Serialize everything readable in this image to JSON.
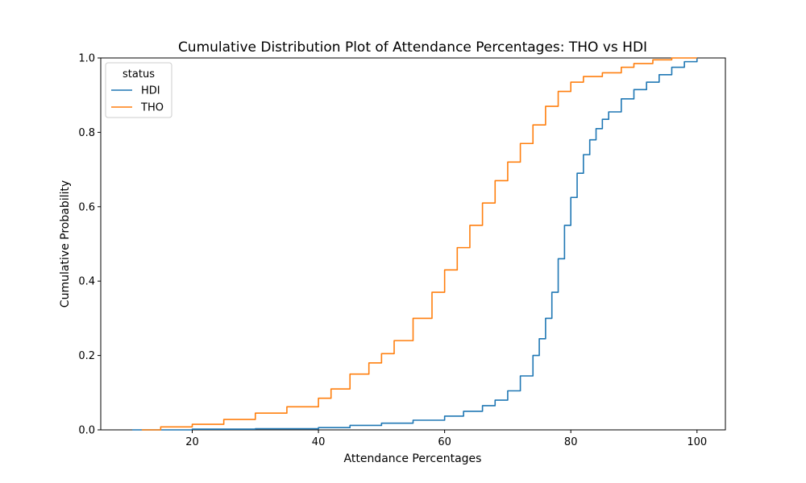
{
  "chart_data": {
    "type": "line",
    "title": "Cumulative Distribution Plot of Attendance Percentages: THO vs HDI",
    "xlabel": "Attendance Percentages",
    "ylabel": "Cumulative Probability",
    "xlim": [
      5.5,
      104.5
    ],
    "ylim": [
      0,
      1
    ],
    "xticks": [
      20,
      40,
      60,
      80,
      100
    ],
    "yticks": [
      0.0,
      0.2,
      0.4,
      0.6,
      0.8,
      1.0
    ],
    "grid": false,
    "legend": {
      "title": "status",
      "placement": "top-left"
    },
    "series": [
      {
        "name": "HDI",
        "color": "#1f77b4",
        "x": [
          10.5,
          20,
          30,
          40,
          45,
          50,
          55,
          60,
          63,
          66,
          68,
          70,
          72,
          74,
          75,
          76,
          77,
          78,
          79,
          80,
          81,
          82,
          83,
          84,
          85,
          86,
          88,
          90,
          92,
          94,
          96,
          98,
          100
        ],
        "y": [
          0.0,
          0.002,
          0.003,
          0.006,
          0.012,
          0.018,
          0.026,
          0.037,
          0.05,
          0.065,
          0.08,
          0.105,
          0.145,
          0.2,
          0.245,
          0.3,
          0.37,
          0.46,
          0.55,
          0.625,
          0.69,
          0.74,
          0.78,
          0.81,
          0.835,
          0.855,
          0.89,
          0.915,
          0.935,
          0.955,
          0.975,
          0.99,
          1.0
        ]
      },
      {
        "name": "THO",
        "color": "#ff7f0e",
        "x": [
          12,
          15,
          20,
          25,
          30,
          35,
          40,
          42,
          45,
          48,
          50,
          52,
          55,
          58,
          60,
          62,
          64,
          66,
          68,
          70,
          72,
          74,
          76,
          78,
          80,
          82,
          85,
          88,
          90,
          93,
          96,
          100
        ],
        "y": [
          0.0,
          0.008,
          0.015,
          0.028,
          0.045,
          0.062,
          0.085,
          0.11,
          0.15,
          0.18,
          0.205,
          0.24,
          0.3,
          0.37,
          0.43,
          0.49,
          0.55,
          0.61,
          0.67,
          0.72,
          0.77,
          0.82,
          0.87,
          0.91,
          0.935,
          0.95,
          0.96,
          0.975,
          0.985,
          0.995,
          1.0,
          1.0
        ]
      }
    ]
  }
}
